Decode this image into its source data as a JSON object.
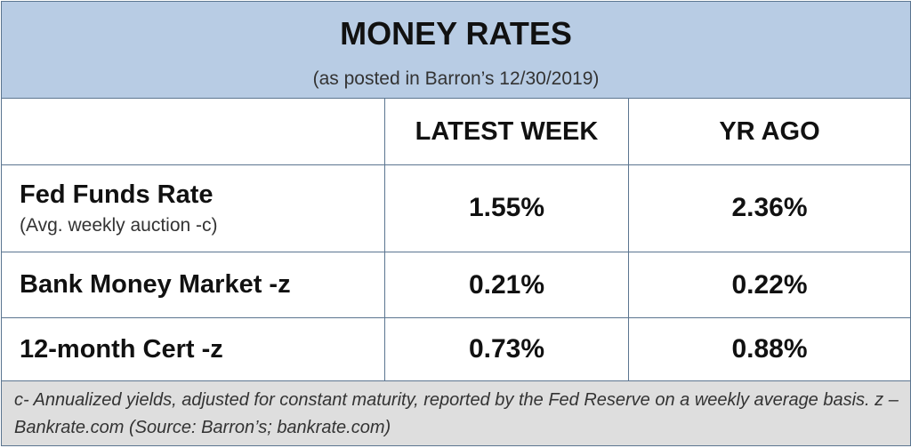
{
  "header": {
    "title": "MONEY RATES",
    "subtitle": "(as posted in Barron’s 12/30/2019)"
  },
  "table": {
    "columns": [
      "LATEST WEEK",
      "YR AGO"
    ],
    "rows": [
      {
        "label": "Fed Funds Rate",
        "sublabel": "(Avg. weekly auction -c)",
        "values": [
          "1.55%",
          "2.36%"
        ]
      },
      {
        "label": "Bank Money Market -z",
        "values": [
          "0.21%",
          "0.22%"
        ]
      },
      {
        "label": "12-month Cert -z",
        "values": [
          "0.73%",
          "0.88%"
        ]
      }
    ]
  },
  "footnote": "c- Annualized yields, adjusted for constant maturity, reported by the Fed Reserve on a weekly average basis. z – Bankrate.com (Source: Barron’s; bankrate.com)"
}
